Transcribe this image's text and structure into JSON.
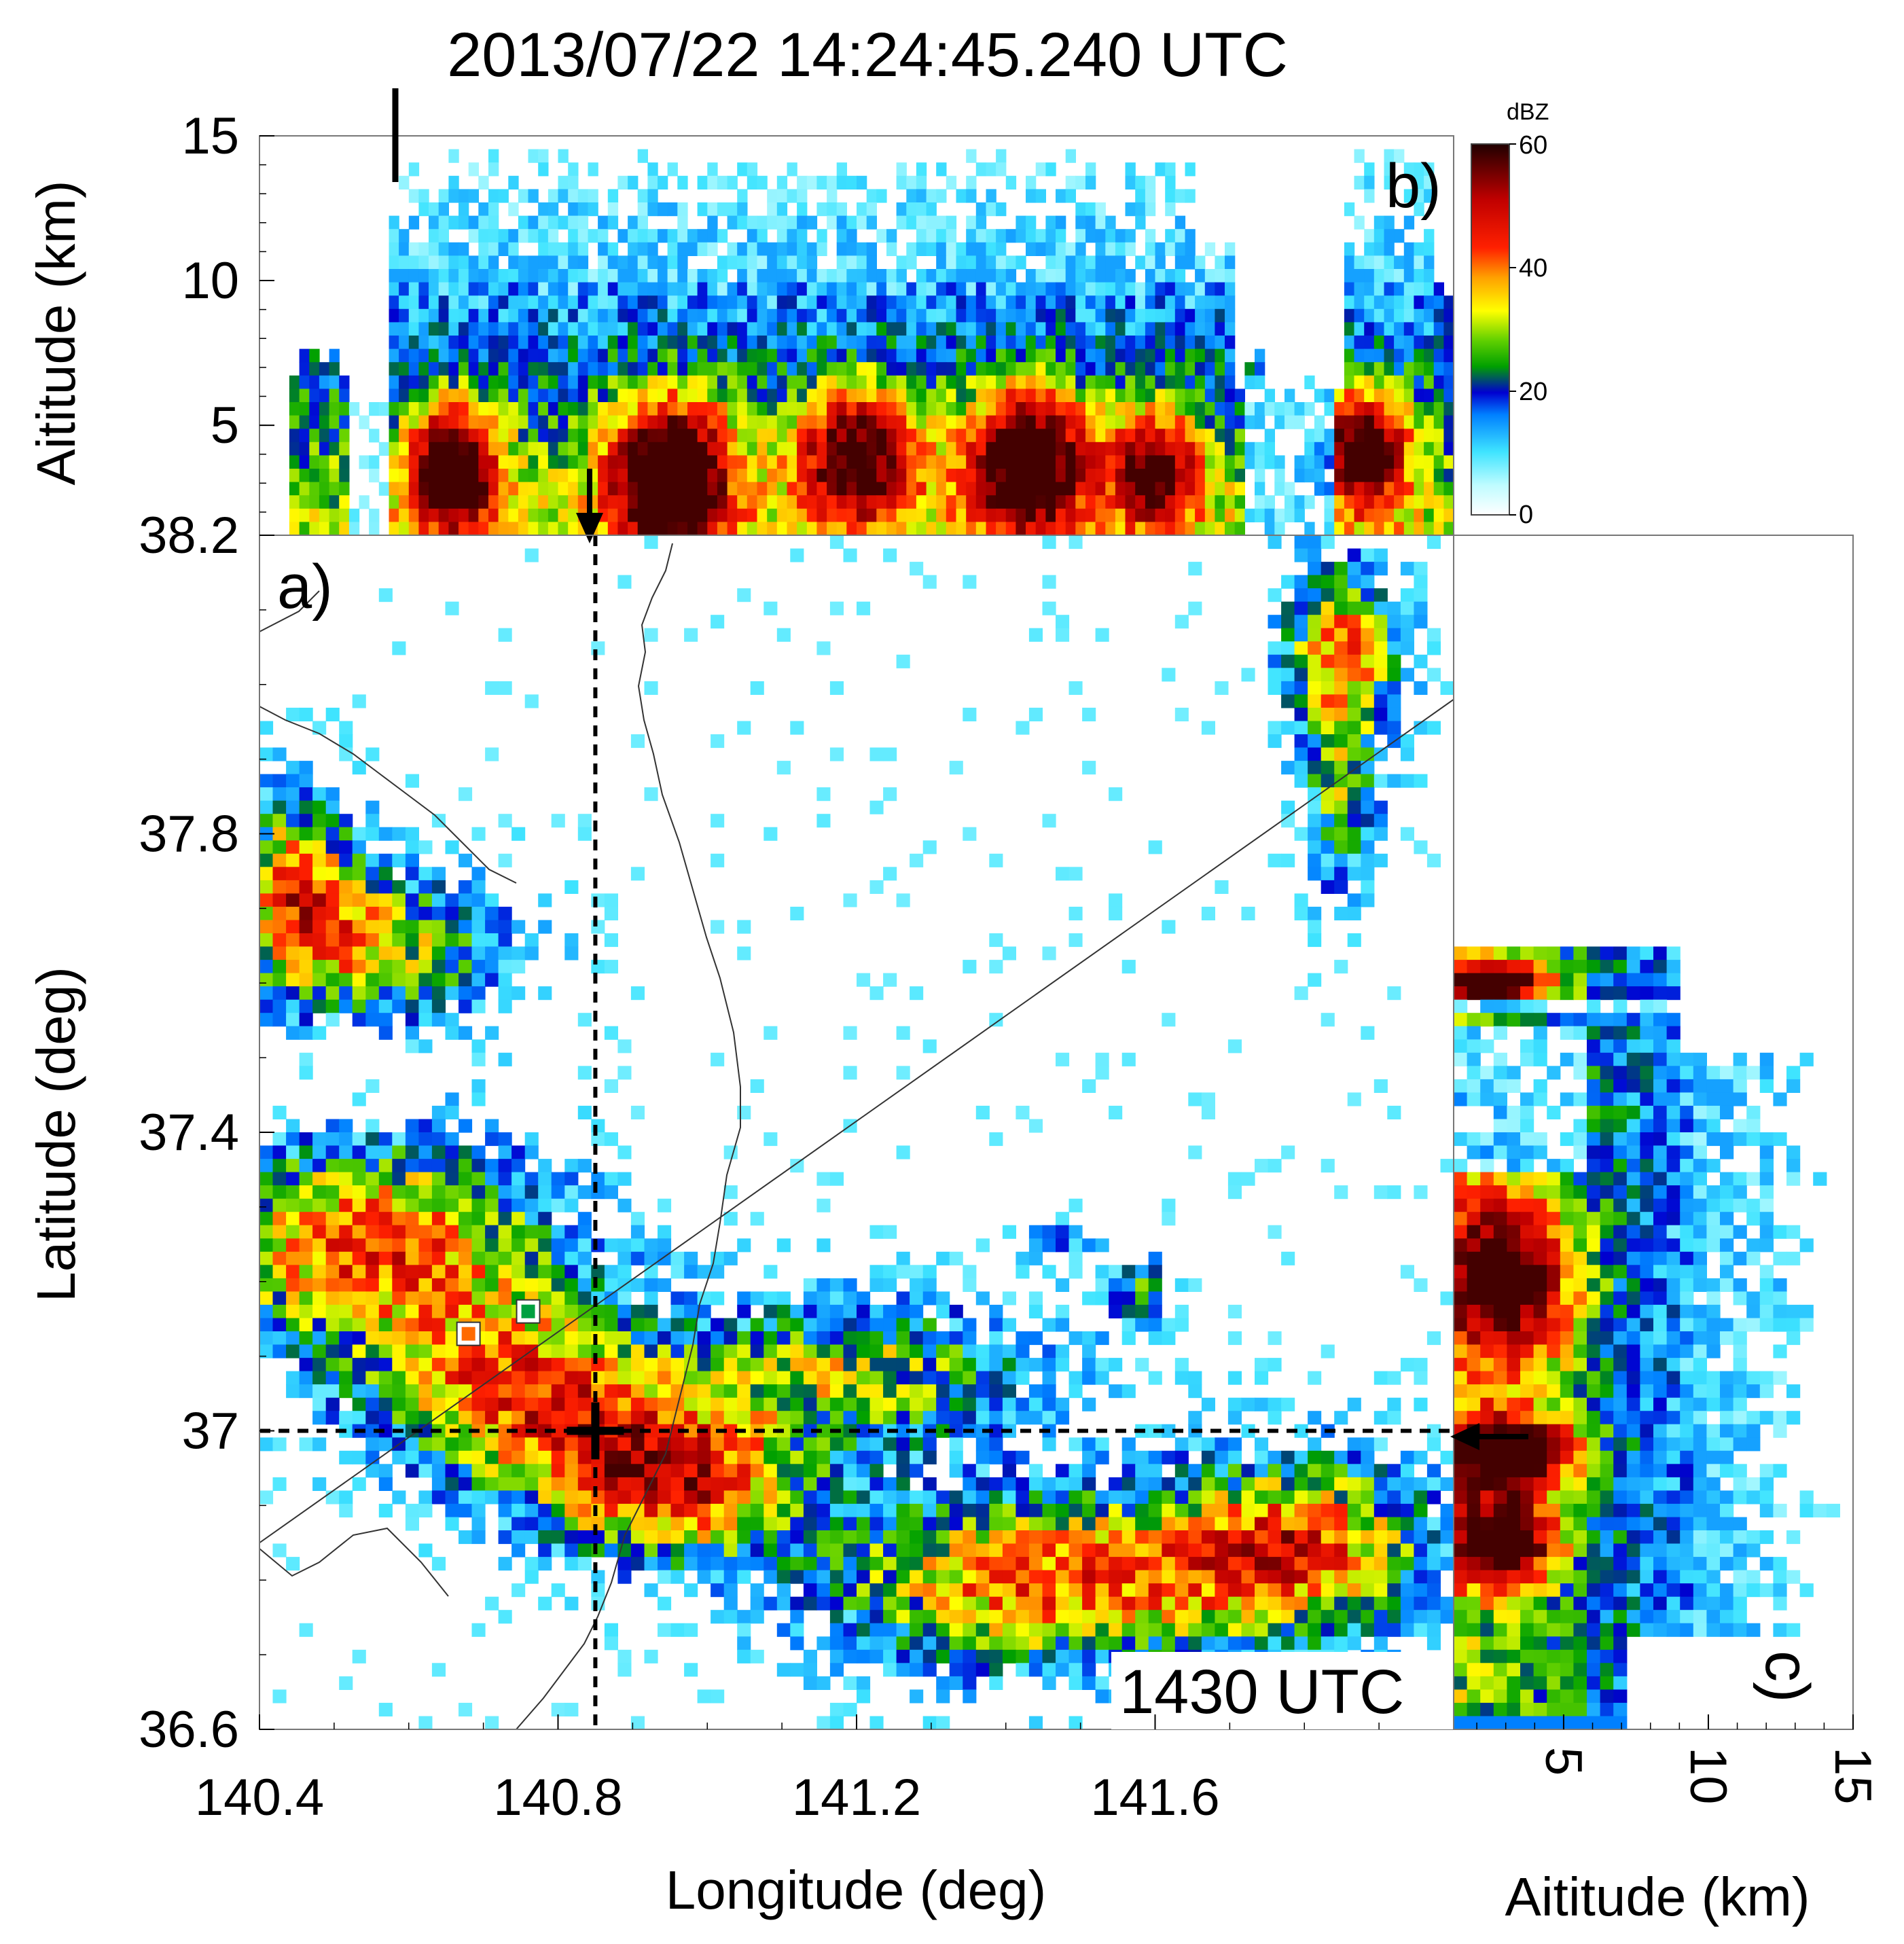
{
  "title": "2013/07/22 14:24:45.240 UTC",
  "panel_labels": {
    "a": "a)",
    "b": "b)",
    "c": "c)"
  },
  "time_box": "1430 UTC",
  "colorbar": {
    "unit": "dBZ",
    "ticks": [
      "60",
      "40",
      "20",
      "0"
    ],
    "stops": [
      "#ffffff",
      "#7ff6ff",
      "#00d8ff",
      "#0060ff",
      "#0000c8",
      "#00c000",
      "#90e000",
      "#ffff00",
      "#ff9000",
      "#ff0000",
      "#c00000",
      "#200000"
    ]
  },
  "chart_data": [
    {
      "type": "heatmap",
      "name": "a",
      "xlabel": "Longitude (deg)",
      "ylabel": "Latitude (deg)",
      "xlim": [
        140.4,
        142.0
      ],
      "ylim": [
        36.6,
        38.2
      ],
      "x_ticks": [
        "140.4",
        "140.8",
        "141.2",
        "141.6"
      ],
      "y_ticks": [
        "38.2",
        "37.8",
        "37.4",
        "37",
        "36.6"
      ],
      "crosshair": {
        "lon": 140.85,
        "lat": 37.0
      },
      "markers": [
        {
          "lon": 140.68,
          "lat": 37.13,
          "color": "#ff6a00"
        },
        {
          "lon": 140.76,
          "lat": 37.16,
          "color": "#00a040"
        }
      ],
      "diagonal_line": [
        [
          140.4,
          36.85
        ],
        [
          142.0,
          37.98
        ]
      ]
    },
    {
      "type": "heatmap",
      "name": "b",
      "xlabel": "",
      "ylabel": "Aititude (km)",
      "xlim": [
        140.4,
        142.0
      ],
      "ylim": [
        1.2,
        15
      ],
      "y_ticks": [
        "15",
        "10",
        "5"
      ],
      "section_latitude": 37.0
    },
    {
      "type": "heatmap",
      "name": "c",
      "xlabel": "Aititude (km)",
      "ylabel": "",
      "xlim": [
        1.2,
        15
      ],
      "ylim": [
        36.6,
        38.2
      ],
      "x_ticks": [
        "5",
        "10",
        "15"
      ],
      "section_longitude": 140.85
    }
  ]
}
